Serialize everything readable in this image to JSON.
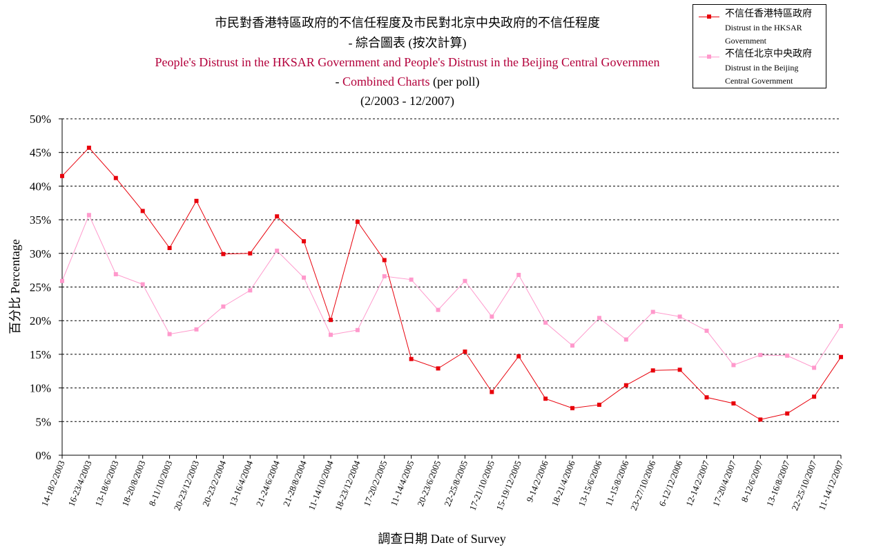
{
  "titles": {
    "line1": "市民對香港特區政府的不信任程度及市民對北京中央政府的不信任程度",
    "line2": "- 綜合圖表 (按次計算)",
    "line3": "People's Distrust in the HKSAR Government and People's Distrust in the Beijing Central Governmen",
    "line4_dash": "- ",
    "line4_red": "Combined Charts",
    "line4_rest": " (per poll)",
    "line5": "(2/2003 - 12/2007)"
  },
  "legend": {
    "hk_zh": "不信任香港特區政府",
    "hk_en1": "Distrust in the HKSAR",
    "hk_en2": "Government",
    "bj_zh": "不信任北京中央政府",
    "bj_en1": "Distrust in the Beijing",
    "bj_en2": "Central Government"
  },
  "chart_data": {
    "type": "line",
    "title": "市民對香港特區政府的不信任程度及市民對北京中央政府的不信任程度 - 綜合圖表 (按次計算)",
    "xlabel": "調查日期 Date of Survey",
    "ylabel": "百分比 Percentage",
    "ylim": [
      0,
      50
    ],
    "yticks": [
      "0%",
      "5%",
      "10%",
      "15%",
      "20%",
      "25%",
      "30%",
      "35%",
      "40%",
      "45%",
      "50%"
    ],
    "grid": "horizontal dotted",
    "legend_position": "top-right",
    "categories": [
      "14-18/2/2003",
      "16-23/4/2003",
      "13-18/6/2003",
      "18-20/8/2003",
      "8-11/10/2003",
      "20-23/12/2003",
      "20-23/2/2004",
      "13-16/4/2004",
      "21-24/6/2004",
      "21-28/8/2004",
      "11-14/10/2004",
      "18-23/12/2004",
      "17-20/2/2005",
      "11-14/4/2005",
      "20-23/6/2005",
      "22-25/8/2005",
      "17-21/10/2005",
      "15-19/12/2005",
      "9-14/2/2006",
      "18-21/4/2006",
      "13-15/6/2006",
      "11-15/8/2006",
      "23-27/10/2006",
      "6-12/12/2006",
      "12-14/2/2007",
      "17-20/4/2007",
      "8-12/6/2007",
      "13-16/8/2007",
      "22-25/10/2007",
      "11-14/12/2007"
    ],
    "series": [
      {
        "name": "不信任香港特區政府 Distrust in the HKSAR Government",
        "color": "#e8000b",
        "values": [
          41.5,
          45.7,
          41.2,
          36.3,
          30.8,
          37.8,
          29.9,
          30.0,
          35.5,
          31.8,
          20.1,
          34.7,
          29.0,
          14.3,
          12.9,
          15.4,
          9.4,
          14.7,
          8.4,
          7.0,
          7.5,
          10.4,
          12.6,
          12.7,
          8.6,
          7.7,
          5.3,
          6.2,
          8.7,
          14.6
        ]
      },
      {
        "name": "不信任北京中央政府 Distrust in the Beijing Central Government",
        "color": "#ff99cc",
        "values": [
          25.9,
          35.7,
          26.9,
          25.4,
          18.0,
          18.7,
          22.1,
          24.5,
          30.4,
          26.4,
          17.9,
          18.6,
          26.6,
          26.1,
          21.6,
          25.9,
          20.6,
          26.8,
          19.7,
          16.3,
          20.4,
          17.2,
          21.3,
          20.6,
          18.5,
          13.4,
          14.9,
          14.8,
          13.0,
          19.2
        ]
      }
    ]
  }
}
